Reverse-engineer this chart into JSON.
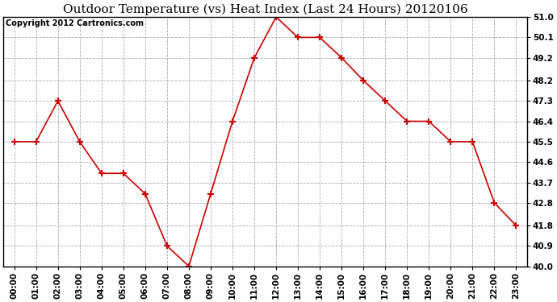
{
  "title": "Outdoor Temperature (vs) Heat Index (Last 24 Hours) 20120106",
  "copyright_text": "Copyright 2012 Cartronics.com",
  "hours": [
    "00:00",
    "01:00",
    "02:00",
    "03:00",
    "04:00",
    "05:00",
    "06:00",
    "07:00",
    "08:00",
    "09:00",
    "10:00",
    "11:00",
    "12:00",
    "13:00",
    "14:00",
    "15:00",
    "16:00",
    "17:00",
    "18:00",
    "19:00",
    "20:00",
    "21:00",
    "22:00",
    "23:00"
  ],
  "values": [
    45.5,
    45.5,
    47.3,
    45.5,
    44.1,
    44.1,
    43.2,
    40.9,
    40.0,
    43.2,
    46.4,
    49.2,
    51.0,
    50.1,
    50.1,
    49.2,
    48.2,
    47.3,
    46.4,
    46.4,
    45.5,
    45.5,
    42.8,
    41.8
  ],
  "ylim": [
    40.0,
    51.0
  ],
  "yticks": [
    40.0,
    40.9,
    41.8,
    42.8,
    43.7,
    44.6,
    45.5,
    46.4,
    47.3,
    48.2,
    49.2,
    50.1,
    51.0
  ],
  "ytick_labels": [
    "40.0",
    "40.9",
    "41.8",
    "42.8",
    "43.7",
    "44.6",
    "45.5",
    "46.4",
    "47.3",
    "48.2",
    "49.2",
    "50.1",
    "51.0"
  ],
  "line_color": "#cc0000",
  "marker": "+",
  "marker_color": "#cc0000",
  "marker_size": 6,
  "marker_linewidth": 1.5,
  "line_width": 1.2,
  "bg_color": "#ffffff",
  "plot_bg_color": "#ffffff",
  "grid_color": "#aaaaaa",
  "title_fontsize": 11,
  "copyright_fontsize": 7,
  "tick_fontsize": 7.5
}
